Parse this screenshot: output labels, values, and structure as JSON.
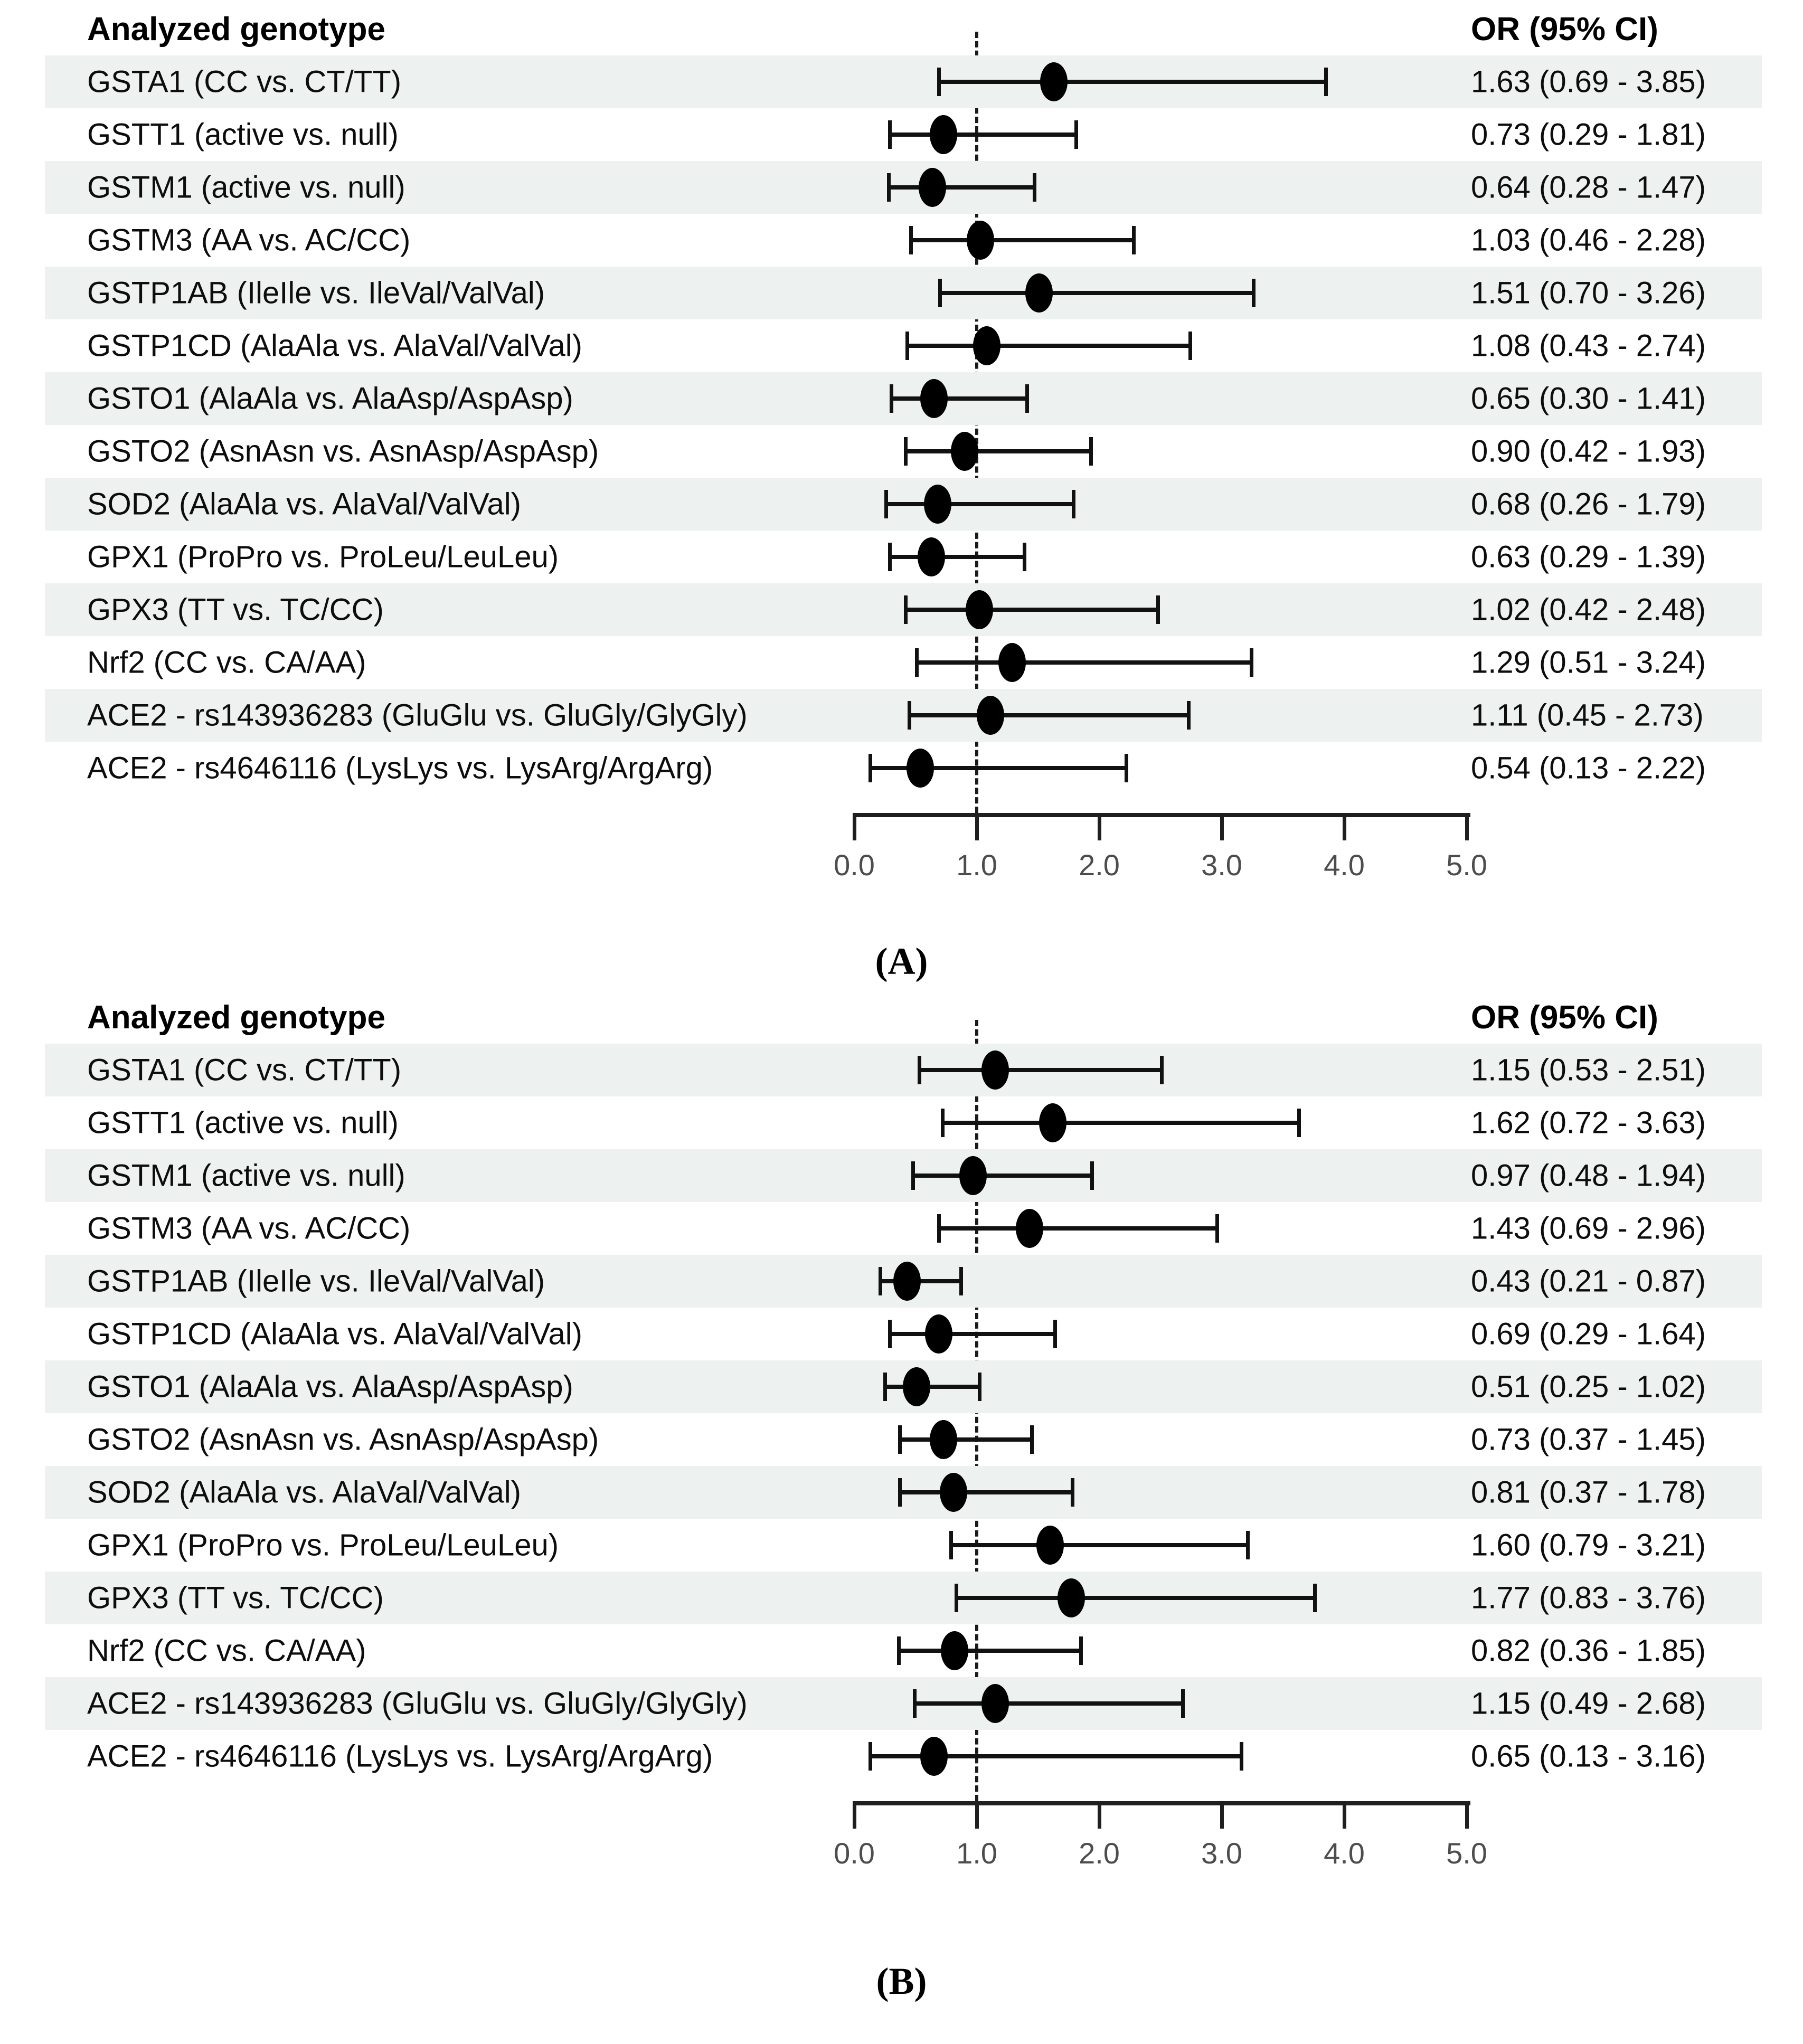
{
  "figure_title": "Forest plots of odds ratios by analyzed genotype",
  "colors": {
    "stripe": "#edf1f0",
    "marker": "#000000",
    "ci_line": "#111111",
    "axis_line": "#1f1f1f",
    "tick_label": "#4d4d4d",
    "background": "#ffffff"
  },
  "chart_data": [
    {
      "type": "scatter",
      "subtype": "forest-plot",
      "panel_label": "(A)",
      "columns": {
        "left": "Analyzed genotype",
        "right": "OR (95% CI)"
      },
      "xlim": [
        0,
        5
      ],
      "x_ticks": [
        0,
        1,
        2,
        3,
        4,
        5
      ],
      "x_tick_labels": [
        "0.0",
        "1.0",
        "2.0",
        "3.0",
        "4.0",
        "5.0"
      ],
      "reference_line_x": 1.0,
      "grid": false,
      "rows": [
        {
          "genotype": "GSTA1 (CC vs. CT/TT)",
          "or": 1.63,
          "ci_low": 0.69,
          "ci_high": 3.85,
          "or_text": "1.63 (0.69 - 3.85)"
        },
        {
          "genotype": "GSTT1 (active vs. null)",
          "or": 0.73,
          "ci_low": 0.29,
          "ci_high": 1.81,
          "or_text": "0.73 (0.29 - 1.81)"
        },
        {
          "genotype": "GSTM1 (active vs. null)",
          "or": 0.64,
          "ci_low": 0.28,
          "ci_high": 1.47,
          "or_text": "0.64 (0.28 - 1.47)"
        },
        {
          "genotype": "GSTM3 (AA vs. AC/CC)",
          "or": 1.03,
          "ci_low": 0.46,
          "ci_high": 2.28,
          "or_text": "1.03 (0.46 - 2.28)"
        },
        {
          "genotype": "GSTP1AB (IleIle vs. IleVal/ValVal)",
          "or": 1.51,
          "ci_low": 0.7,
          "ci_high": 3.26,
          "or_text": "1.51 (0.70 - 3.26)"
        },
        {
          "genotype": "GSTP1CD (AlaAla vs. AlaVal/ValVal)",
          "or": 1.08,
          "ci_low": 0.43,
          "ci_high": 2.74,
          "or_text": "1.08 (0.43 - 2.74)"
        },
        {
          "genotype": "GSTO1 (AlaAla vs. AlaAsp/AspAsp)",
          "or": 0.65,
          "ci_low": 0.3,
          "ci_high": 1.41,
          "or_text": "0.65 (0.30 - 1.41)"
        },
        {
          "genotype": "GSTO2 (AsnAsn vs. AsnAsp/AspAsp)",
          "or": 0.9,
          "ci_low": 0.42,
          "ci_high": 1.93,
          "or_text": "0.90 (0.42 - 1.93)"
        },
        {
          "genotype": "SOD2 (AlaAla vs. AlaVal/ValVal)",
          "or": 0.68,
          "ci_low": 0.26,
          "ci_high": 1.79,
          "or_text": "0.68 (0.26 - 1.79)"
        },
        {
          "genotype": "GPX1 (ProPro vs. ProLeu/LeuLeu)",
          "or": 0.63,
          "ci_low": 0.29,
          "ci_high": 1.39,
          "or_text": "0.63 (0.29 - 1.39)"
        },
        {
          "genotype": "GPX3 (TT vs. TC/CC)",
          "or": 1.02,
          "ci_low": 0.42,
          "ci_high": 2.48,
          "or_text": "1.02 (0.42 - 2.48)"
        },
        {
          "genotype": "Nrf2 (CC vs. CA/AA)",
          "or": 1.29,
          "ci_low": 0.51,
          "ci_high": 3.24,
          "or_text": "1.29 (0.51 - 3.24)"
        },
        {
          "genotype": "ACE2 - rs143936283 (GluGlu vs. GluGly/GlyGly)",
          "or": 1.11,
          "ci_low": 0.45,
          "ci_high": 2.73,
          "or_text": "1.11 (0.45 - 2.73)"
        },
        {
          "genotype": "ACE2 - rs4646116 (LysLys vs. LysArg/ArgArg)",
          "or": 0.54,
          "ci_low": 0.13,
          "ci_high": 2.22,
          "or_text": "0.54 (0.13 - 2.22)"
        }
      ]
    },
    {
      "type": "scatter",
      "subtype": "forest-plot",
      "panel_label": "(B)",
      "columns": {
        "left": "Analyzed genotype",
        "right": "OR (95% CI)"
      },
      "xlim": [
        0,
        5
      ],
      "x_ticks": [
        0,
        1,
        2,
        3,
        4,
        5
      ],
      "x_tick_labels": [
        "0.0",
        "1.0",
        "2.0",
        "3.0",
        "4.0",
        "5.0"
      ],
      "reference_line_x": 1.0,
      "grid": false,
      "rows": [
        {
          "genotype": "GSTA1 (CC vs. CT/TT)",
          "or": 1.15,
          "ci_low": 0.53,
          "ci_high": 2.51,
          "or_text": "1.15 (0.53 - 2.51)"
        },
        {
          "genotype": "GSTT1 (active vs. null)",
          "or": 1.62,
          "ci_low": 0.72,
          "ci_high": 3.63,
          "or_text": "1.62 (0.72 - 3.63)"
        },
        {
          "genotype": "GSTM1 (active vs. null)",
          "or": 0.97,
          "ci_low": 0.48,
          "ci_high": 1.94,
          "or_text": "0.97 (0.48 - 1.94)"
        },
        {
          "genotype": "GSTM3 (AA vs. AC/CC)",
          "or": 1.43,
          "ci_low": 0.69,
          "ci_high": 2.96,
          "or_text": "1.43 (0.69 - 2.96)"
        },
        {
          "genotype": "GSTP1AB (IleIle vs. IleVal/ValVal)",
          "or": 0.43,
          "ci_low": 0.21,
          "ci_high": 0.87,
          "or_text": "0.43 (0.21 - 0.87)"
        },
        {
          "genotype": "GSTP1CD (AlaAla vs. AlaVal/ValVal)",
          "or": 0.69,
          "ci_low": 0.29,
          "ci_high": 1.64,
          "or_text": "0.69 (0.29 - 1.64)"
        },
        {
          "genotype": "GSTO1 (AlaAla vs. AlaAsp/AspAsp)",
          "or": 0.51,
          "ci_low": 0.25,
          "ci_high": 1.02,
          "or_text": "0.51 (0.25 - 1.02)"
        },
        {
          "genotype": "GSTO2 (AsnAsn vs. AsnAsp/AspAsp)",
          "or": 0.73,
          "ci_low": 0.37,
          "ci_high": 1.45,
          "or_text": "0.73 (0.37 - 1.45)"
        },
        {
          "genotype": "SOD2 (AlaAla vs. AlaVal/ValVal)",
          "or": 0.81,
          "ci_low": 0.37,
          "ci_high": 1.78,
          "or_text": "0.81 (0.37 - 1.78)"
        },
        {
          "genotype": "GPX1 (ProPro vs. ProLeu/LeuLeu)",
          "or": 1.6,
          "ci_low": 0.79,
          "ci_high": 3.21,
          "or_text": "1.60 (0.79 - 3.21)"
        },
        {
          "genotype": "GPX3 (TT vs. TC/CC)",
          "or": 1.77,
          "ci_low": 0.83,
          "ci_high": 3.76,
          "or_text": "1.77 (0.83 - 3.76)"
        },
        {
          "genotype": "Nrf2 (CC vs. CA/AA)",
          "or": 0.82,
          "ci_low": 0.36,
          "ci_high": 1.85,
          "or_text": "0.82 (0.36 - 1.85)"
        },
        {
          "genotype": "ACE2 - rs143936283 (GluGlu vs. GluGly/GlyGly)",
          "or": 1.15,
          "ci_low": 0.49,
          "ci_high": 2.68,
          "or_text": "1.15 (0.49 - 2.68)"
        },
        {
          "genotype": "ACE2 - rs4646116 (LysLys vs. LysArg/ArgArg)",
          "or": 0.65,
          "ci_low": 0.13,
          "ci_high": 3.16,
          "or_text": "0.65 (0.13 - 3.16)"
        }
      ]
    }
  ]
}
